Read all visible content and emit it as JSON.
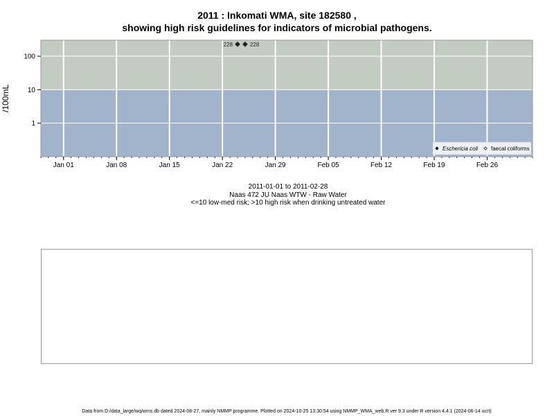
{
  "title_line1": "2011 : Inkomati WMA, site 182580 ,",
  "title_line2": "showing high risk guidelines for indicators of microbial pathogens.",
  "subtitle": {
    "date_range": "2011-01-01 to 2011-02-28",
    "site_name": "Naas 472 JU Naas WTW - Raw Water",
    "risk_note": "<=10 low-med risk; >10 high risk when drinking untreated water"
  },
  "footer": "Data from D:/data_large/wq/wms.db dated 2024-08-27, mainly NMMP programme. Plotted on 2024-10-25 13:30:54 using NMMP_WMA_web.R ver 9.3 under R version 4.4.1 (2024-06-14 ucrt)",
  "chart_data": {
    "type": "scatter",
    "ylabel": "/100mL",
    "y_scale": "log",
    "threshold": 10,
    "ylim": [
      0.1,
      300
    ],
    "xlim": [
      "2010-12-29",
      "2011-03-04"
    ],
    "y_ticks": [
      1,
      10,
      100
    ],
    "y_tick_labels": [
      "1",
      "10",
      "100"
    ],
    "x_ticks": [
      "2011-01-01",
      "2011-01-08",
      "2011-01-15",
      "2011-01-22",
      "2011-01-29",
      "2011-02-05",
      "2011-02-12",
      "2011-02-19",
      "2011-02-26"
    ],
    "x_tick_labels": [
      "Jan 01",
      "Jan 08",
      "Jan 15",
      "Jan 22",
      "Jan 29",
      "Feb 05",
      "Feb 12",
      "Feb 19",
      "Feb 26"
    ],
    "grid": true,
    "colors": {
      "high_risk_band": "#c3ccc0",
      "low_risk_band": "#a2b3cc",
      "grid": "#ffffff",
      "marker": "#222222"
    },
    "series": [
      {
        "name": "Eschericia coli",
        "marker": "filled-diamond",
        "points": [
          {
            "date": "2011-01-24",
            "value": 228,
            "label": "228"
          },
          {
            "date": "2011-01-25",
            "value": 228,
            "label": "228"
          }
        ]
      },
      {
        "name": "faecal coliforms",
        "marker": "open-diamond",
        "points": []
      }
    ],
    "legend_position": "bottom-right"
  }
}
